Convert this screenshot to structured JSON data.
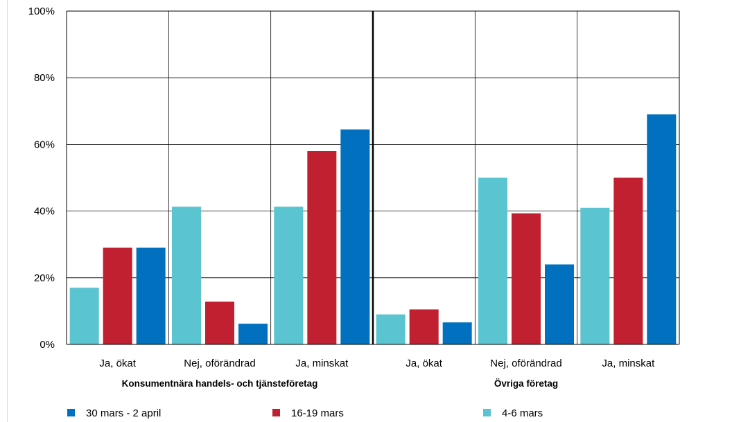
{
  "chart_data": {
    "type": "bar",
    "title": "",
    "xlabel": "",
    "ylabel": "",
    "ylim": [
      0,
      100
    ],
    "yticks": [
      "0%",
      "20%",
      "40%",
      "60%",
      "80%",
      "100%"
    ],
    "grid": true,
    "legend_position": "bottom",
    "groups": [
      {
        "name": "Konsumentnära handels- och tjänsteföretag",
        "categories": [
          "Ja, ökat",
          "Nej, oförändrad",
          "Ja, minskat"
        ]
      },
      {
        "name": "Övriga företag",
        "categories": [
          "Ja, ökat",
          "Nej, oförändrad",
          "Ja, minskat"
        ]
      }
    ],
    "series": [
      {
        "name": "4-6 mars",
        "color": "#5bc4d1",
        "values": [
          17,
          41.3,
          41.3,
          9,
          50,
          41
        ]
      },
      {
        "name": "16-19 mars",
        "color": "#c0202f",
        "values": [
          29,
          12.8,
          58,
          10.5,
          39.3,
          50
        ]
      },
      {
        "name": "30 mars - 2 april",
        "color": "#0070bf",
        "values": [
          29,
          6.2,
          64.5,
          6.6,
          24,
          69
        ]
      }
    ],
    "legend_order": [
      "30 mars - 2 april",
      "16-19 mars",
      "4-6 mars"
    ]
  }
}
